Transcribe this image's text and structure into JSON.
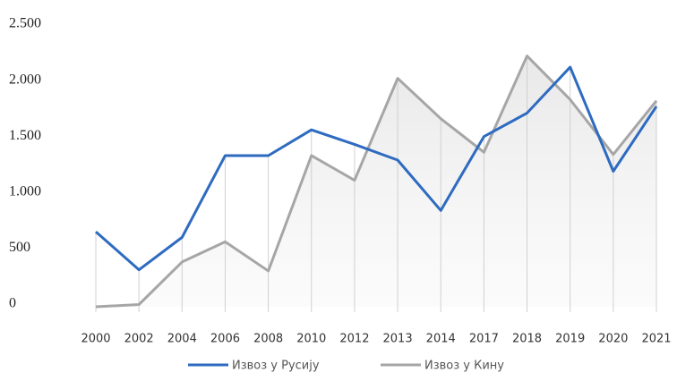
{
  "chart_data": {
    "type": "line",
    "categories": [
      "2000",
      "2002",
      "2004",
      "2006",
      "2008",
      "2010",
      "2012",
      "2013",
      "2014",
      "2017",
      "2018",
      "2019",
      "2020",
      "2021"
    ],
    "series": [
      {
        "name": "Извоз у Русију",
        "color": "#2e6bc0",
        "values": [
          670,
          330,
          620,
          1350,
          1350,
          1580,
          1450,
          1310,
          860,
          1520,
          1730,
          2140,
          1210,
          1790
        ]
      },
      {
        "name": "Извоз у Кину",
        "color": "#a6a6a6",
        "values": [
          0,
          20,
          400,
          580,
          320,
          1350,
          1130,
          2040,
          1680,
          1380,
          2240,
          1850,
          1360,
          1840
        ]
      }
    ],
    "ylim": [
      0,
      2500
    ],
    "yticks": [
      0,
      500,
      {
        "value": 1000,
        "label": "1.000"
      },
      {
        "value": 1500,
        "label": "1.500"
      },
      {
        "value": 2000,
        "label": "2.000"
      },
      {
        "value": 2500,
        "label": "2.500"
      }
    ],
    "legend": "bottom"
  }
}
